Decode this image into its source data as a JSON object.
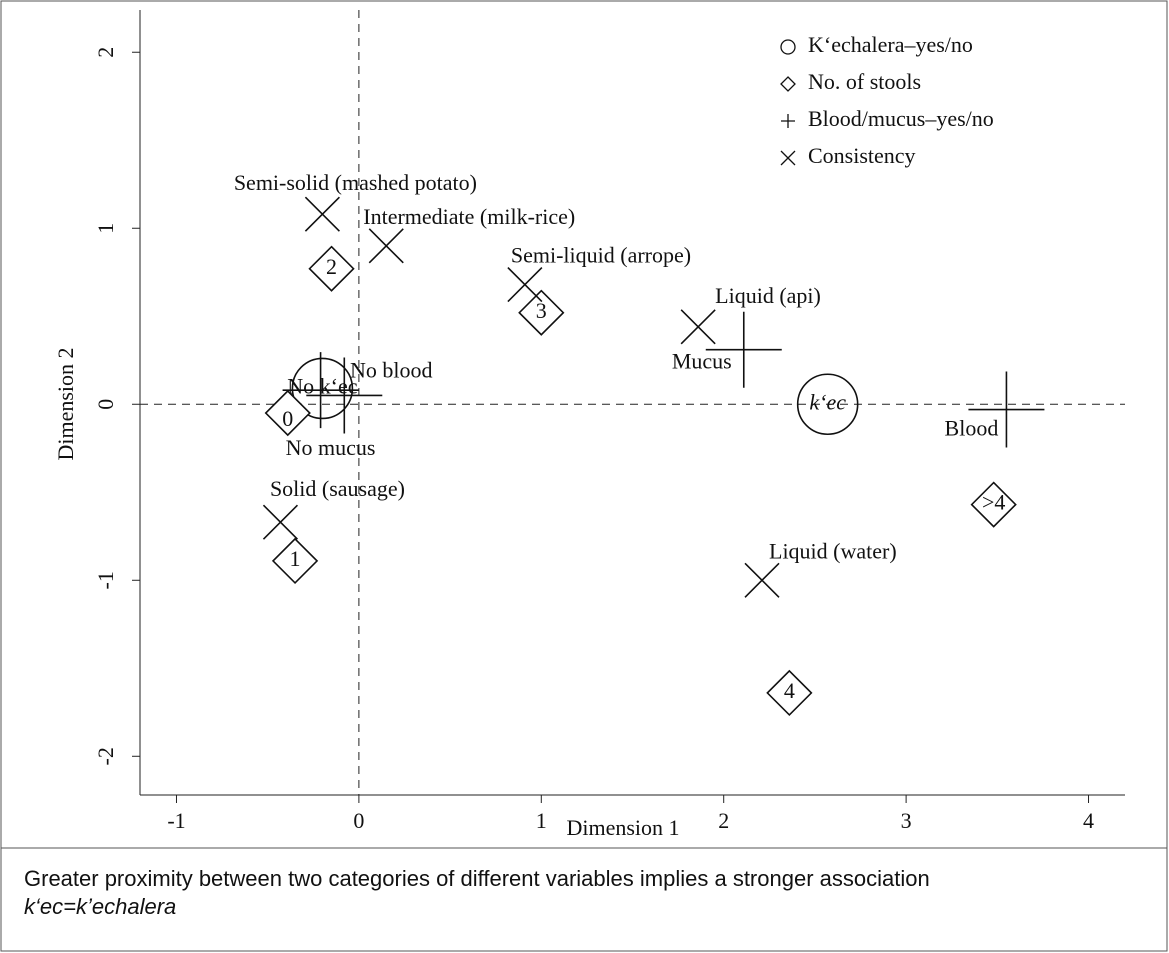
{
  "chart_data": {
    "type": "scatter",
    "xlabel": "Dimension 1",
    "ylabel": "Dimension 2",
    "xlim": [
      -1.2,
      4.2
    ],
    "ylim": [
      -2.22,
      2.24
    ],
    "xticks": [
      -1,
      0,
      1,
      2,
      3,
      4
    ],
    "yticks": [
      -2,
      -1,
      0,
      1,
      2
    ],
    "legend": "upper right",
    "series": [
      {
        "name": "K‘echalera–yes/no",
        "marker": "circle",
        "color": "#111111",
        "labels": [
          "No k‘ec",
          "k‘ec"
        ],
        "x": [
          -0.2,
          2.57
        ],
        "y": [
          0.09,
          0.0
        ]
      },
      {
        "name": "No. of stools",
        "marker": "diamond",
        "color": "#111111",
        "labels": [
          "0",
          "1",
          "2",
          "3",
          "4",
          ">4"
        ],
        "x": [
          -0.39,
          -0.35,
          -0.15,
          1.0,
          2.36,
          3.48
        ],
        "y": [
          -0.05,
          -0.89,
          0.77,
          0.52,
          -1.64,
          -0.57
        ]
      },
      {
        "name": "Blood/mucus–yes/no",
        "marker": "plus",
        "color": "#111111",
        "labels": [
          "No blood",
          "No mucus",
          "Mucus",
          "Blood"
        ],
        "x": [
          -0.08,
          -0.21,
          2.11,
          3.55
        ],
        "y": [
          0.05,
          0.08,
          0.31,
          -0.03
        ]
      },
      {
        "name": "Consistency",
        "marker": "x",
        "color": "#111111",
        "labels": [
          "Solid (sausage)",
          "Semi-solid (mashed potato)",
          "Intermediate (milk-rice)",
          "Semi-liquid (arrope)",
          "Liquid (api)",
          "Liquid (water)"
        ],
        "x": [
          -0.43,
          -0.2,
          0.15,
          0.91,
          1.86,
          2.21
        ],
        "y": [
          -0.67,
          1.08,
          0.9,
          0.68,
          0.44,
          -1.0
        ]
      }
    ]
  },
  "notes": [
    "Greater proximity between two categories of different variables implies a stronger association",
    "k‘ec=k’echalera"
  ]
}
